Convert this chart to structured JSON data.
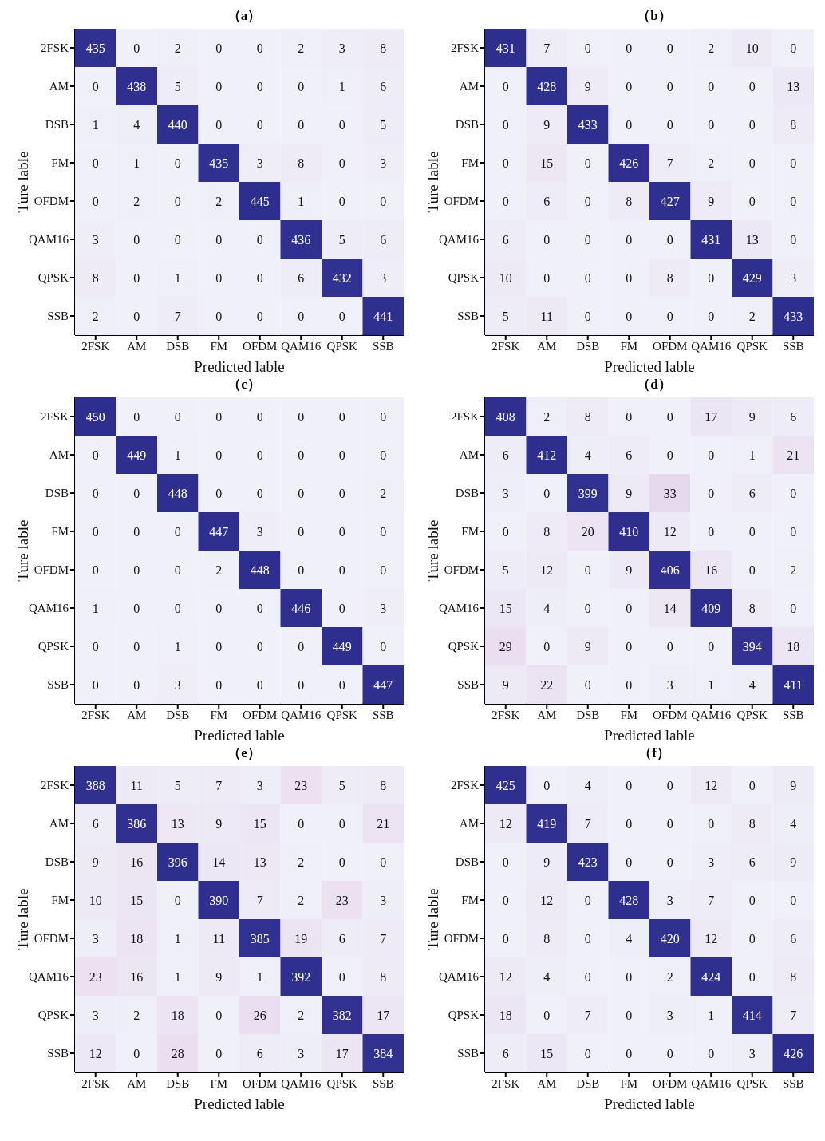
{
  "chart_data": [
    {
      "type": "heatmap",
      "title": "（a）",
      "xlabel": "Predicted lable",
      "ylabel": "Ture lable",
      "categories": [
        "2FSK",
        "AM",
        "DSB",
        "FM",
        "OFDM",
        "QAM16",
        "QPSK",
        "SSB"
      ],
      "y_categories": [
        "2FSK",
        "AM",
        "DSB",
        "FM",
        "OFDM",
        "QAM16",
        "QPSK",
        "SSB"
      ],
      "data_labels": true,
      "cells": [
        [
          435,
          0,
          2,
          0,
          0,
          2,
          3,
          8
        ],
        [
          0,
          438,
          5,
          0,
          0,
          0,
          1,
          6
        ],
        [
          1,
          4,
          440,
          0,
          0,
          0,
          0,
          5
        ],
        [
          0,
          1,
          0,
          435,
          3,
          8,
          0,
          3
        ],
        [
          0,
          2,
          0,
          2,
          445,
          1,
          0,
          0
        ],
        [
          3,
          0,
          0,
          0,
          0,
          436,
          5,
          6
        ],
        [
          8,
          0,
          1,
          0,
          0,
          6,
          432,
          3
        ],
        [
          2,
          0,
          7,
          0,
          0,
          0,
          0,
          441
        ]
      ]
    },
    {
      "type": "heatmap",
      "title": "（b）",
      "xlabel": "Predicted lable",
      "ylabel": "Ture lable",
      "categories": [
        "2FSK",
        "AM",
        "DSB",
        "FM",
        "OFDM",
        "QAM16",
        "QPSK",
        "SSB"
      ],
      "y_categories": [
        "2FSK",
        "AM",
        "DSB",
        "FM",
        "OFDM",
        "QAM16",
        "QPSK",
        "SSB"
      ],
      "data_labels": true,
      "cells": [
        [
          431,
          7,
          0,
          0,
          0,
          2,
          10,
          0
        ],
        [
          0,
          428,
          9,
          0,
          0,
          0,
          0,
          13
        ],
        [
          0,
          9,
          433,
          0,
          0,
          0,
          0,
          8
        ],
        [
          0,
          15,
          0,
          426,
          7,
          2,
          0,
          0
        ],
        [
          0,
          6,
          0,
          8,
          427,
          9,
          0,
          0
        ],
        [
          6,
          0,
          0,
          0,
          0,
          431,
          13,
          0
        ],
        [
          10,
          0,
          0,
          0,
          8,
          0,
          429,
          3
        ],
        [
          5,
          11,
          0,
          0,
          0,
          0,
          2,
          433
        ]
      ]
    },
    {
      "type": "heatmap",
      "title": "（c）",
      "xlabel": "Predicted lable",
      "ylabel": "Ture lable",
      "categories": [
        "2FSK",
        "AM",
        "DSB",
        "FM",
        "OFDM",
        "QAM16",
        "QPSK",
        "SSB"
      ],
      "y_categories": [
        "2FSK",
        "AM",
        "DSB",
        "FM",
        "OFDM",
        "QAM16",
        "QPSK",
        "SSB"
      ],
      "data_labels": true,
      "cells": [
        [
          450,
          0,
          0,
          0,
          0,
          0,
          0,
          0
        ],
        [
          0,
          449,
          1,
          0,
          0,
          0,
          0,
          0
        ],
        [
          0,
          0,
          448,
          0,
          0,
          0,
          0,
          2
        ],
        [
          0,
          0,
          0,
          447,
          3,
          0,
          0,
          0
        ],
        [
          0,
          0,
          0,
          2,
          448,
          0,
          0,
          0
        ],
        [
          1,
          0,
          0,
          0,
          0,
          446,
          0,
          3
        ],
        [
          0,
          0,
          1,
          0,
          0,
          0,
          449,
          0
        ],
        [
          0,
          0,
          3,
          0,
          0,
          0,
          0,
          447
        ]
      ]
    },
    {
      "type": "heatmap",
      "title": "（d）",
      "xlabel": "Predicted lable",
      "ylabel": "Ture lable",
      "categories": [
        "2FSK",
        "AM",
        "DSB",
        "FM",
        "OFDM",
        "QAM16",
        "QPSK",
        "SSB"
      ],
      "y_categories": [
        "2FSK",
        "AM",
        "DSB",
        "FM",
        "OFDM",
        "QAM16",
        "QPSK",
        "SSB"
      ],
      "data_labels": true,
      "cells": [
        [
          408,
          2,
          8,
          0,
          0,
          17,
          9,
          6
        ],
        [
          6,
          412,
          4,
          6,
          0,
          0,
          1,
          21
        ],
        [
          3,
          0,
          399,
          9,
          33,
          0,
          6,
          0
        ],
        [
          0,
          8,
          20,
          410,
          12,
          0,
          0,
          0
        ],
        [
          5,
          12,
          0,
          9,
          406,
          16,
          0,
          2
        ],
        [
          15,
          4,
          0,
          0,
          14,
          409,
          8,
          0
        ],
        [
          29,
          0,
          9,
          0,
          0,
          0,
          394,
          18
        ],
        [
          9,
          22,
          0,
          0,
          3,
          1,
          4,
          411
        ]
      ]
    },
    {
      "type": "heatmap",
      "title": "（e）",
      "xlabel": "Predicted lable",
      "ylabel": "Ture lable",
      "categories": [
        "2FSK",
        "AM",
        "DSB",
        "FM",
        "OFDM",
        "QAM16",
        "QPSK",
        "SSB"
      ],
      "y_categories": [
        "2FSK",
        "AM",
        "DSB",
        "FM",
        "OFDM",
        "QAM16",
        "QPSK",
        "SSB"
      ],
      "data_labels": true,
      "cells": [
        [
          388,
          11,
          5,
          7,
          3,
          23,
          5,
          8
        ],
        [
          6,
          386,
          13,
          9,
          15,
          0,
          0,
          21
        ],
        [
          9,
          16,
          396,
          14,
          13,
          2,
          0,
          0
        ],
        [
          10,
          15,
          0,
          390,
          7,
          2,
          23,
          3
        ],
        [
          3,
          18,
          1,
          11,
          385,
          19,
          6,
          7
        ],
        [
          23,
          16,
          1,
          9,
          1,
          392,
          0,
          8
        ],
        [
          3,
          2,
          18,
          0,
          26,
          2,
          382,
          17
        ],
        [
          12,
          0,
          28,
          0,
          6,
          3,
          17,
          384
        ]
      ]
    },
    {
      "type": "heatmap",
      "title": "（f）",
      "xlabel": "Predicted lable",
      "ylabel": "Ture lable",
      "categories": [
        "2FSK",
        "AM",
        "DSB",
        "FM",
        "OFDM",
        "QAM16",
        "QPSK",
        "SSB"
      ],
      "y_categories": [
        "2FSK",
        "AM",
        "DSB",
        "FM",
        "OFDM",
        "QAM16",
        "QPSK",
        "SSB"
      ],
      "data_labels": true,
      "cells": [
        [
          425,
          0,
          4,
          0,
          0,
          12,
          0,
          9
        ],
        [
          12,
          419,
          7,
          0,
          0,
          0,
          8,
          4
        ],
        [
          0,
          9,
          423,
          0,
          0,
          3,
          6,
          9
        ],
        [
          0,
          12,
          0,
          428,
          3,
          7,
          0,
          0
        ],
        [
          0,
          8,
          0,
          4,
          420,
          12,
          0,
          6
        ],
        [
          12,
          4,
          0,
          0,
          2,
          424,
          0,
          8
        ],
        [
          18,
          0,
          7,
          0,
          3,
          1,
          414,
          7
        ],
        [
          6,
          15,
          0,
          0,
          0,
          0,
          3,
          426
        ]
      ]
    }
  ]
}
